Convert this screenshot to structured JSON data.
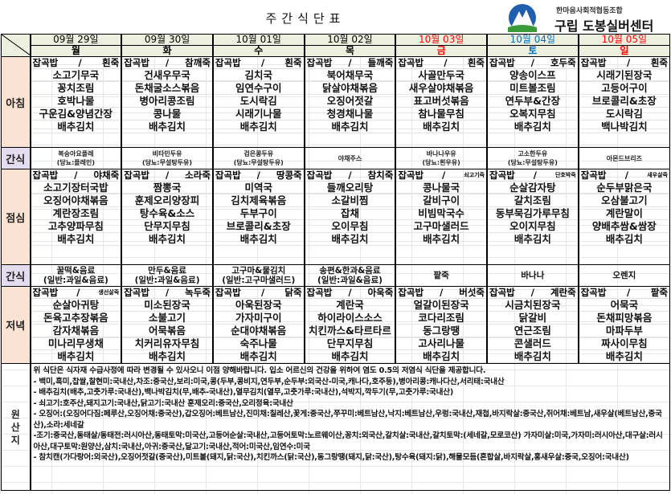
{
  "title": "주간식단표",
  "logo": {
    "org": "한마음사회적협동조합",
    "name": "구립 도봉실버센터"
  },
  "colors": {
    "sunday_red": "#ff0000",
    "saturday_blue": "#0070c0",
    "breakfast_label_bg": "#fbe3d4",
    "snack_label_bg": "#e3ddef",
    "header_bg": "#eef0df"
  },
  "labels": {
    "breakfast": "아침",
    "snack": "간식",
    "lunch": "점심",
    "dinner": "저녁",
    "origin": "원산지",
    "rice": "잡곡밥",
    "sep": "/"
  },
  "days": [
    {
      "date": "09월 29일",
      "weekday": "월",
      "color": "#000000",
      "breakfast": {
        "porridge": "흰죽",
        "dishes": [
          "소고기무국",
          "꽁치조림",
          "호박나물",
          "구운김&양념간장",
          "배추김치"
        ]
      },
      "snack1": [
        "복숭아요플레",
        "(당뇨:플레인)"
      ],
      "lunch": {
        "porridge": "야채죽",
        "dishes": [
          "소고기장터국밥",
          "오징어야채볶음",
          "계란장조림",
          "고추양파무침",
          "배추김치"
        ]
      },
      "snack2": [
        "꿀떡&음료",
        "(일반:과일&음료)"
      ],
      "dinner": {
        "porridge": "생선살죽",
        "small": true,
        "dishes": [
          "순살아귀탕",
          "돈육고추장볶음",
          "감자채볶음",
          "미나리무생채",
          "배추김치"
        ]
      }
    },
    {
      "date": "09월 30일",
      "weekday": "화",
      "color": "#000000",
      "breakfast": {
        "porridge": "참깨죽",
        "dishes": [
          "건새우무국",
          "돈채굴소스볶음",
          "병아리콩조림",
          "콩나물",
          "배추김치"
        ]
      },
      "snack1": [
        "비타민두유",
        "(당뇨:무설탕두유)"
      ],
      "lunch": {
        "porridge": "소라죽",
        "dishes": [
          "짬뽕국",
          "훈제오리양장피",
          "탕수육&소스",
          "단무지무침",
          "배추김치"
        ]
      },
      "snack2": [
        "만두&음료",
        "(일반:과일&음료)"
      ],
      "dinner": {
        "porridge": "녹두죽",
        "dishes": [
          "미소된장국",
          "소불고기",
          "어묵볶음",
          "치커리유자무침",
          "배추김치"
        ]
      }
    },
    {
      "date": "10월 01일",
      "weekday": "수",
      "color": "#000000",
      "breakfast": {
        "porridge": "흰죽",
        "dishes": [
          "김치국",
          "임연수구이",
          "도시락김",
          "시래기나물",
          "배추김치"
        ]
      },
      "snack1": [
        "검은콩두유",
        "(당뇨:무설탕두유)"
      ],
      "lunch": {
        "porridge": "땅콩죽",
        "dishes": [
          "미역국",
          "김치제육볶음",
          "두부구이",
          "브로콜리&초장",
          "배추김치"
        ]
      },
      "snack2": [
        "고구마&물김치",
        "(일반:고구마샐러드)"
      ],
      "dinner": {
        "porridge": "닭죽",
        "dishes": [
          "아욱된장국",
          "가자미구이",
          "순대야채볶음",
          "숙주나물",
          "배추김치"
        ]
      }
    },
    {
      "date": "10월 02일",
      "weekday": "목",
      "color": "#000000",
      "breakfast": {
        "porridge": "들깨죽",
        "dishes": [
          "북어채무국",
          "닭살야채볶음",
          "오징어젓갈",
          "청경채나물",
          "배추김치"
        ]
      },
      "snack1": [
        "야채주스"
      ],
      "lunch": {
        "porridge": "참치죽",
        "dishes": [
          "들깨오리탕",
          "소갈비찜",
          "잡채",
          "오이무침",
          "배추김치"
        ]
      },
      "snack2": [
        "송편&한과&음료",
        "(일반:과일&음료)"
      ],
      "dinner": {
        "porridge": "아욱죽",
        "dishes": [
          "계란국",
          "하이라이스소스",
          "치킨까스&타르타르",
          "단무지무침",
          "배추김치"
        ]
      }
    },
    {
      "date": "10월 03일",
      "weekday": "금",
      "color": "#ff0000",
      "breakfast": {
        "porridge": "흰죽",
        "dishes": [
          "사골만두국",
          "새우살야채볶음",
          "표고버섯볶음",
          "참나물무침",
          "배추김치"
        ]
      },
      "snack1": [
        "바나나우유",
        "(당뇨:흰우유)"
      ],
      "lunch": {
        "porridge": "쇠고기죽",
        "small": true,
        "dishes": [
          "콩나물국",
          "갈비구이",
          "비빔막국수",
          "고구마샐러드",
          "배추김치"
        ]
      },
      "snack2": [
        "팥죽"
      ],
      "dinner": {
        "porridge": "버섯죽",
        "dishes": [
          "얼갈이된장국",
          "코다리조림",
          "동그랑땡",
          "고사리나물",
          "배추김치"
        ]
      }
    },
    {
      "date": "10월 04일",
      "weekday": "토",
      "color": "#0070c0",
      "breakfast": {
        "porridge": "호두죽",
        "dishes": [
          "양송이스프",
          "미트볼조림",
          "연두부&간장",
          "오복지무침",
          "배추김치"
        ]
      },
      "snack1": [
        "고소한두유",
        "(당뇨:무설탕두유)"
      ],
      "lunch": {
        "porridge": "단호박죽",
        "small": true,
        "dishes": [
          "순살감자탕",
          "갈치조림",
          "동부묵김가루무침",
          "오이지무침",
          "배추김치"
        ]
      },
      "snack2": [
        "바나나"
      ],
      "dinner": {
        "porridge": "계란죽",
        "dishes": [
          "시금치된장국",
          "닭갈비",
          "연근조림",
          "콘샐러드",
          "배추김치"
        ]
      }
    },
    {
      "date": "10월 05일",
      "weekday": "일",
      "color": "#ff0000",
      "breakfast": {
        "porridge": "흰죽",
        "dishes": [
          "시래기된장국",
          "고등어구이",
          "브로콜리&초장",
          "도시락김",
          "백나박김치"
        ]
      },
      "snack1": [
        "아몬드브리즈"
      ],
      "lunch": {
        "porridge": "새우살죽",
        "small": true,
        "dishes": [
          "순두부맑은국",
          "오삼불고기",
          "계란말이",
          "양배추쌈&쌈장",
          "배추김치"
        ]
      },
      "snack2": [
        "오렌지"
      ],
      "dinner": {
        "porridge": "팥죽",
        "dishes": [
          "어묵국",
          "돈채피망볶음",
          "마파두부",
          "짜사이무침",
          "배추김치"
        ]
      }
    }
  ],
  "notes": [
    "위 식단은 식자재 수급사정에 따라 변경될 수 있사오니 이점 양해바랍니다. 입소 어르신의 건강을 위하여 염도 0.5의 저염식 식단을 제공합니다.",
    "- 백미,흑미,찹쌀,찰현미:국내산,차조:중국산,보리:미국,콩(두부,콩비지,연두부,순두부:외국산-미국,캐나다,호주등),병아리콩:캐나다산,서리태:국내산",
    "- 배추김치(배추,고춧가루:국내산),백나박김치(무,배추-국내산),열무김치(열무,고춧가루:국내산),석박지,깍두기(무,고춧가루:국내산)",
    "- 쇠고기:호주산,돼지고기:국내산,닭고기:국내산 훈제오리:중국산,오리정육:국내산",
    "- 오징어:(오징어다짐:페루산,오징어채:중국산),갑오징어:베트남산,진미채:칠레산,꽃게:중국산,쭈꾸미:베트남산,낙지:베트남산,우렁:국내산,재첩,바지락살:중국산,쥐어채:베트남,새우살(베트남산,중국산),소라:세네갈",
    "-조기:중국산,동태살/동태전:러시아산,동태토막:미국산,고등어순살:국내산,고등어토막:노르웨이산,꽁치:외국산,갈치살:국내산,갈치토막:(세네갈,모로코산) 가자미살:미국,가자미:러시아산,대구살:러시아산,대구토막:원양산,삼치:국내산,아귀:중국산,달고기:국내산,적어:미국산,임연수:미국",
    "- 참치캔(가다랑어:외국산),오징어젓갈(중국산),미트볼(돼지,닭:국산),치킨까스(닭:국산),동그랑땡(돼지,닭:국산),탕수육(돼지:닭),해물모듬(혼합살,바지락살,홍새우살:중국,오징어:국내산)"
  ]
}
